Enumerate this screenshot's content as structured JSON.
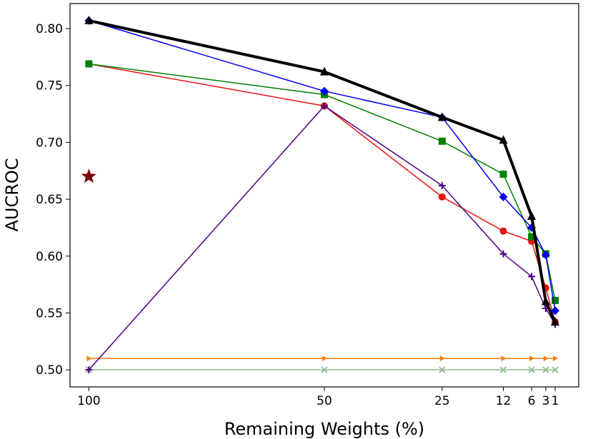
{
  "chart_data": {
    "type": "line",
    "title": "",
    "xlabel": "Remaining Weights (%)",
    "ylabel": "AUCROC",
    "ylim": [
      0.485,
      0.822
    ],
    "x_ticks": [
      {
        "value": 100,
        "label": "100"
      },
      {
        "value": 50,
        "label": "50"
      },
      {
        "value": 25,
        "label": "25"
      },
      {
        "value": 12,
        "label": "12"
      },
      {
        "value": 6,
        "label": "6"
      },
      {
        "value": 3,
        "label": "3"
      },
      {
        "value": 1,
        "label": "1"
      }
    ],
    "y_ticks": [
      "0.50",
      "0.55",
      "0.60",
      "0.65",
      "0.70",
      "0.75",
      "0.80"
    ],
    "grid": false,
    "x_order": [
      100,
      50,
      25,
      12,
      6,
      3,
      1
    ],
    "series": [
      {
        "name": "orange-baseline",
        "color": "#ff7f0e",
        "marker": "tri-right",
        "lineWidth": 1.5,
        "x": [
          100,
          50,
          25,
          12,
          6,
          3,
          1
        ],
        "y": [
          0.51,
          0.51,
          0.51,
          0.51,
          0.51,
          0.51,
          0.51
        ]
      },
      {
        "name": "lightgreen-baseline",
        "color": "#8fbc8f",
        "marker": "x",
        "lineWidth": 1.5,
        "x": [
          100,
          50,
          25,
          12,
          6,
          3,
          1
        ],
        "y": [
          0.5,
          0.5,
          0.5,
          0.5,
          0.5,
          0.5,
          0.5
        ]
      },
      {
        "name": "red-circle",
        "color": "#e8120f",
        "marker": "circle",
        "lineWidth": 1.5,
        "x": [
          100,
          50,
          25,
          12,
          6,
          3,
          1
        ],
        "y": [
          0.769,
          0.732,
          0.652,
          0.622,
          0.613,
          0.572,
          0.542
        ]
      },
      {
        "name": "green-square",
        "color": "#008000",
        "marker": "square",
        "lineWidth": 1.5,
        "x": [
          100,
          50,
          25,
          12,
          6,
          3,
          1
        ],
        "y": [
          0.769,
          0.742,
          0.701,
          0.672,
          0.617,
          0.602,
          0.561
        ]
      },
      {
        "name": "purple-plus",
        "color": "#4b0082",
        "marker": "plus",
        "lineWidth": 1.5,
        "x": [
          100,
          50,
          25,
          12,
          6,
          3,
          1
        ],
        "y": [
          0.5,
          0.732,
          0.662,
          0.602,
          0.582,
          0.554,
          0.54
        ]
      },
      {
        "name": "blue-diamond",
        "color": "#0000ee",
        "marker": "diamond",
        "lineWidth": 1.5,
        "x": [
          100,
          50,
          25,
          12,
          6,
          3,
          1
        ],
        "y": [
          0.807,
          0.745,
          0.722,
          0.652,
          0.625,
          0.601,
          0.552
        ]
      },
      {
        "name": "black-triangle",
        "color": "#000000",
        "marker": "triangle",
        "lineWidth": 4,
        "x": [
          100,
          50,
          25,
          12,
          6,
          3,
          1
        ],
        "y": [
          0.807,
          0.762,
          0.722,
          0.702,
          0.635,
          0.56,
          0.542
        ]
      }
    ],
    "points": [
      {
        "name": "maroon-star",
        "color": "#7b0000",
        "marker": "star",
        "x": 100,
        "y": 0.67
      }
    ]
  }
}
